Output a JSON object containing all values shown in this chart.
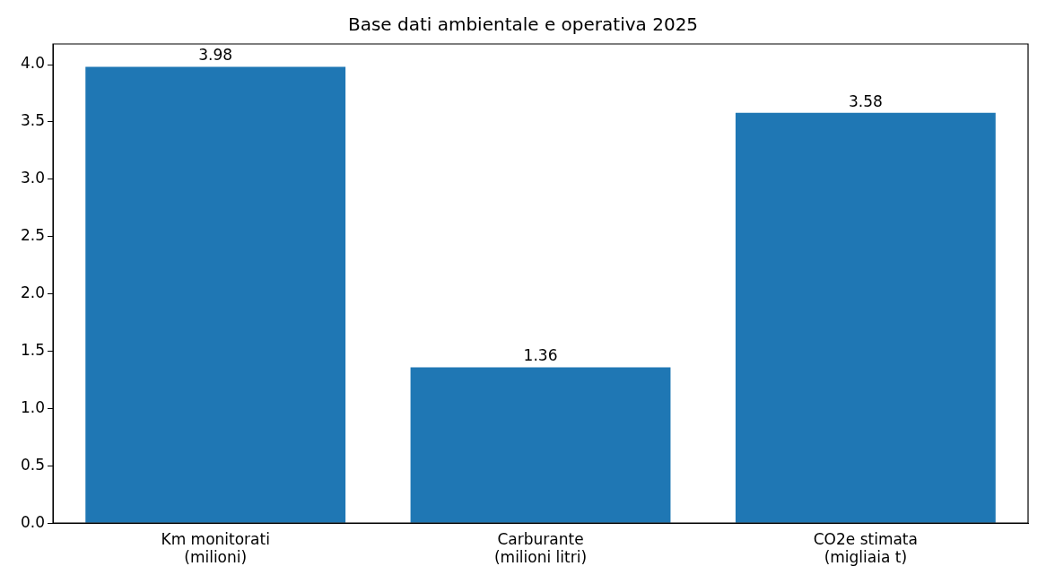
{
  "chart_data": {
    "type": "bar",
    "title": "Base dati ambientale e operativa 2025",
    "categories": [
      "Km monitorati\n(milioni)",
      "Carburante\n(milioni litri)",
      "CO2e stimata\n(migliaia t)"
    ],
    "values": [
      3.98,
      1.36,
      3.58
    ],
    "color": "#1f77b4",
    "ylim": [
      0,
      4.18
    ],
    "yticks": [
      {
        "value": 0,
        "label": "0.0"
      },
      0.5,
      {
        "value": 1,
        "label": "1.0"
      },
      1.5,
      {
        "value": 2,
        "label": "2.0"
      },
      2.5,
      {
        "value": 3,
        "label": "3.0"
      },
      3.5,
      {
        "value": 4,
        "label": "4.0"
      }
    ],
    "data_labels": true,
    "grid": false,
    "legend": false
  }
}
